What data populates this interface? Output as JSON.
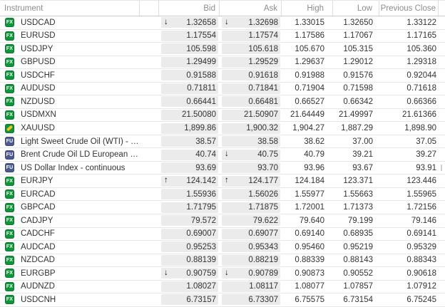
{
  "table": {
    "columns": {
      "instrument": "Instrument",
      "bid": "Bid",
      "ask": "Ask",
      "high": "High",
      "low": "Low",
      "previous_close": "Previous Close"
    }
  },
  "icons": {
    "up_arrow": "↑",
    "down_arrow": "↓"
  },
  "colors": {
    "fx_badge": "#0f9439",
    "fx_badge_border": "#0b7a2e",
    "fu_badge": "#4a5a8e",
    "fu_badge_border": "#3d4c7c",
    "gold_bar": "#edc51c",
    "price_box_bg": "#ebebeb",
    "header_text": "#8d8d8d",
    "row_text": "#333333",
    "row_border": "#e8e8e8",
    "header_border": "#cccccc",
    "column_divider": "#dddddd"
  },
  "rows": [
    {
      "badge": "fx",
      "badge_label": "FX",
      "name": "USDCAD",
      "bid_arrow": "down",
      "bid": "1.32658",
      "ask_arrow": "down",
      "ask": "1.32698",
      "high": "1.33015",
      "low": "1.32650",
      "previous_close": "1.33122"
    },
    {
      "badge": "fx",
      "badge_label": "FX",
      "name": "EURUSD",
      "bid_arrow": null,
      "bid": "1.17554",
      "ask_arrow": null,
      "ask": "1.17574",
      "high": "1.17586",
      "low": "1.17067",
      "previous_close": "1.17165"
    },
    {
      "badge": "fx",
      "badge_label": "FX",
      "name": "USDJPY",
      "bid_arrow": null,
      "bid": "105.598",
      "ask_arrow": null,
      "ask": "105.618",
      "high": "105.670",
      "low": "105.315",
      "previous_close": "105.360"
    },
    {
      "badge": "fx",
      "badge_label": "FX",
      "name": "GBPUSD",
      "bid_arrow": null,
      "bid": "1.29499",
      "ask_arrow": null,
      "ask": "1.29529",
      "high": "1.29637",
      "low": "1.29012",
      "previous_close": "1.29318"
    },
    {
      "badge": "fx",
      "badge_label": "FX",
      "name": "USDCHF",
      "bid_arrow": null,
      "bid": "0.91588",
      "ask_arrow": null,
      "ask": "0.91618",
      "high": "0.91988",
      "low": "0.91576",
      "previous_close": "0.92044"
    },
    {
      "badge": "fx",
      "badge_label": "FX",
      "name": "AUDUSD",
      "bid_arrow": null,
      "bid": "0.71811",
      "ask_arrow": null,
      "ask": "0.71841",
      "high": "0.71904",
      "low": "0.71598",
      "previous_close": "0.71618"
    },
    {
      "badge": "fx",
      "badge_label": "FX",
      "name": "NZDUSD",
      "bid_arrow": null,
      "bid": "0.66441",
      "ask_arrow": null,
      "ask": "0.66481",
      "high": "0.66527",
      "low": "0.66342",
      "previous_close": "0.66366"
    },
    {
      "badge": "fx",
      "badge_label": "FX",
      "name": "USDMXN",
      "bid_arrow": null,
      "bid": "21.50080",
      "ask_arrow": null,
      "ask": "21.50907",
      "high": "21.64449",
      "low": "21.49997",
      "previous_close": "21.61366"
    },
    {
      "badge": "gold",
      "badge_label": "",
      "name": "XAUUSD",
      "bid_arrow": null,
      "bid": "1,899.86",
      "ask_arrow": null,
      "ask": "1,900.32",
      "high": "1,904.27",
      "low": "1,887.29",
      "previous_close": "1,898.90"
    },
    {
      "badge": "fu",
      "badge_label": "FU",
      "name": "Light Sweet Crude Oil (WTI) - …",
      "bid_arrow": null,
      "bid": "38.57",
      "ask_arrow": null,
      "ask": "38.58",
      "high": "38.62",
      "low": "37.00",
      "previous_close": "37.05"
    },
    {
      "badge": "fu",
      "badge_label": "FU",
      "name": "Brent Crude Oil LD European …",
      "bid_arrow": null,
      "bid": "40.74",
      "ask_arrow": "down",
      "ask": "40.75",
      "high": "40.79",
      "low": "39.21",
      "previous_close": "39.27"
    },
    {
      "badge": "fu",
      "badge_label": "FU",
      "name": "US Dollar Index - continuous",
      "bid_arrow": null,
      "bid": "93.69",
      "ask_arrow": null,
      "ask": "93.70",
      "high": "93.96",
      "low": "93.67",
      "previous_close": "93.91"
    },
    {
      "badge": "fx",
      "badge_label": "FX",
      "name": "EURJPY",
      "bid_arrow": "up",
      "bid": "124.142",
      "ask_arrow": "up",
      "ask": "124.177",
      "high": "124.184",
      "low": "123.371",
      "previous_close": "123.446"
    },
    {
      "badge": "fx",
      "badge_label": "FX",
      "name": "EURCAD",
      "bid_arrow": null,
      "bid": "1.55936",
      "ask_arrow": null,
      "ask": "1.56026",
      "high": "1.55977",
      "low": "1.55663",
      "previous_close": "1.55965"
    },
    {
      "badge": "fx",
      "badge_label": "FX",
      "name": "GBPCAD",
      "bid_arrow": null,
      "bid": "1.71795",
      "ask_arrow": null,
      "ask": "1.71875",
      "high": "1.72001",
      "low": "1.71373",
      "previous_close": "1.72156"
    },
    {
      "badge": "fx",
      "badge_label": "FX",
      "name": "CADJPY",
      "bid_arrow": null,
      "bid": "79.572",
      "ask_arrow": null,
      "ask": "79.622",
      "high": "79.640",
      "low": "79.199",
      "previous_close": "79.146"
    },
    {
      "badge": "fx",
      "badge_label": "FX",
      "name": "CADCHF",
      "bid_arrow": null,
      "bid": "0.69007",
      "ask_arrow": null,
      "ask": "0.69077",
      "high": "0.69140",
      "low": "0.68935",
      "previous_close": "0.69141"
    },
    {
      "badge": "fx",
      "badge_label": "FX",
      "name": "AUDCAD",
      "bid_arrow": null,
      "bid": "0.95253",
      "ask_arrow": null,
      "ask": "0.95343",
      "high": "0.95460",
      "low": "0.95219",
      "previous_close": "0.95329"
    },
    {
      "badge": "fx",
      "badge_label": "FX",
      "name": "NZDCAD",
      "bid_arrow": null,
      "bid": "0.88139",
      "ask_arrow": null,
      "ask": "0.88219",
      "high": "0.88339",
      "low": "0.88143",
      "previous_close": "0.88343"
    },
    {
      "badge": "fx",
      "badge_label": "FX",
      "name": "EURGBP",
      "bid_arrow": "down",
      "bid": "0.90759",
      "ask_arrow": "down",
      "ask": "0.90789",
      "high": "0.90873",
      "low": "0.90552",
      "previous_close": "0.90618"
    },
    {
      "badge": "fx",
      "badge_label": "FX",
      "name": "AUDNZD",
      "bid_arrow": null,
      "bid": "1.08027",
      "ask_arrow": null,
      "ask": "1.08117",
      "high": "1.08077",
      "low": "1.07857",
      "previous_close": "1.07912"
    },
    {
      "badge": "fx",
      "badge_label": "FX",
      "name": "USDCNH",
      "bid_arrow": null,
      "bid": "6.73157",
      "ask_arrow": null,
      "ask": "6.73307",
      "high": "6.75575",
      "low": "6.73154",
      "previous_close": "6.75245"
    }
  ]
}
